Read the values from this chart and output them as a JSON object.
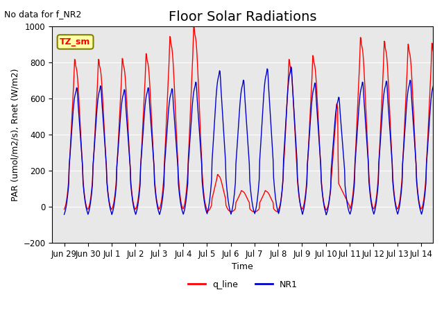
{
  "title": "Floor Solar Radiations",
  "no_data_label": "No data for f_NR2",
  "tz_label": "TZ_sm",
  "xlabel": "Time",
  "ylabel": "PAR (umol/m2/s), Rnet (W/m2)",
  "ylim": [
    -200,
    1000
  ],
  "yticks": [
    -200,
    0,
    200,
    400,
    600,
    800,
    1000
  ],
  "xtick_labels": [
    "Jun 29",
    "Jun 30",
    "Jul 1",
    "Jul 2",
    "Jul 3",
    "Jul 4",
    "Jul 5",
    "Jul 6",
    "Jul 7",
    "Jul 8",
    "Jul 9",
    "Jul 10",
    "Jul 11",
    "Jul 12",
    "Jul 13",
    "Jul 14"
  ],
  "line_red_color": "#ff0000",
  "line_blue_color": "#0000cc",
  "legend_red_label": "q_line",
  "legend_blue_label": "NR1",
  "bg_color": "#e8e8e8",
  "title_fontsize": 14,
  "label_fontsize": 9,
  "tick_fontsize": 8.5,
  "red_peaks": [
    775,
    775,
    780,
    805,
    895,
    950,
    170,
    85,
    85,
    775,
    795,
    540,
    890,
    870,
    855,
    860
  ],
  "blue_peaks": [
    630,
    640,
    620,
    630,
    625,
    660,
    720,
    670,
    730,
    740,
    655,
    580,
    660,
    665,
    670,
    660
  ]
}
